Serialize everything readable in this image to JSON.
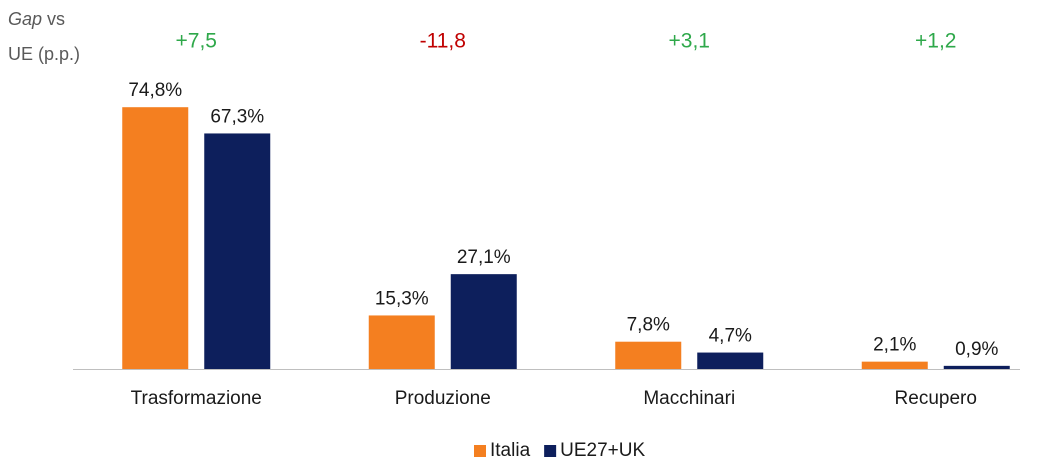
{
  "chart_data": {
    "type": "bar",
    "gap_title": [
      "Gap",
      "vs",
      "UE (p.p.)"
    ],
    "gap_labels": [
      "+7,5",
      "-11,8",
      "+3,1",
      "+1,2"
    ],
    "gap_colors": [
      "#2ea84a",
      "#c00000",
      "#2ea84a",
      "#2ea84a"
    ],
    "categories": [
      "Trasformazione",
      "Produzione",
      "Macchinari",
      "Recupero"
    ],
    "series": [
      {
        "name": "Italia",
        "color": "#f47f20",
        "values": [
          74.8,
          15.3,
          7.8,
          2.1
        ],
        "value_labels": [
          "74,8%",
          "15,3%",
          "7,8%",
          "2,1%"
        ]
      },
      {
        "name": "UE27+UK",
        "color": "#0d1f5c",
        "values": [
          67.3,
          27.1,
          4.7,
          0.9
        ],
        "value_labels": [
          "67,3%",
          "27,1%",
          "4,7%",
          "0,9%"
        ]
      }
    ],
    "ylim": [
      0,
      80
    ],
    "legend": "bottom"
  }
}
